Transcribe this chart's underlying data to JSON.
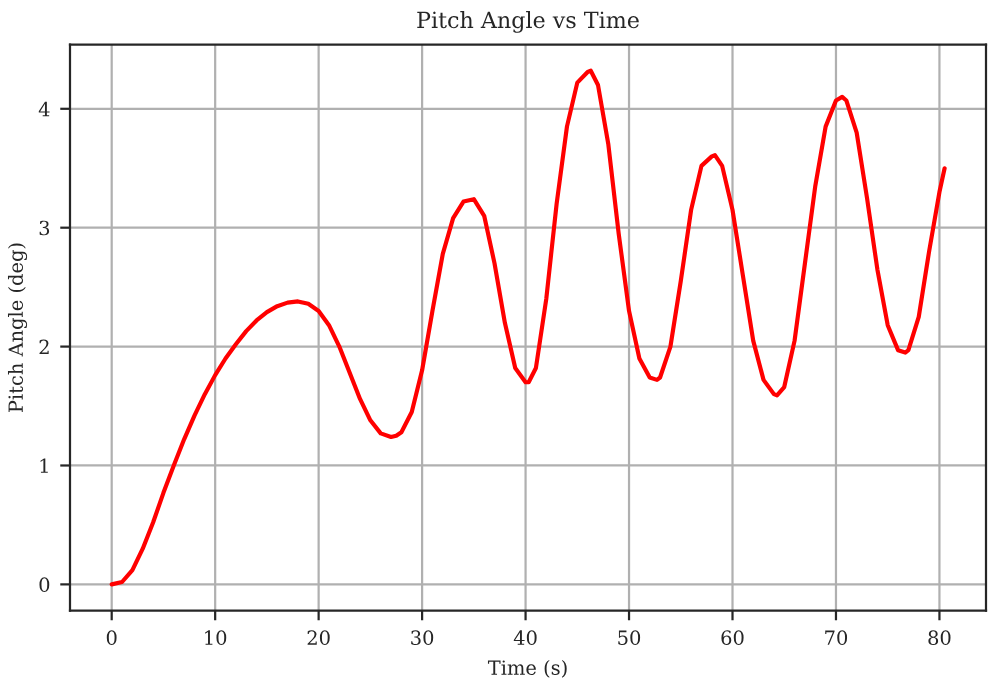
{
  "chart_data": {
    "type": "line",
    "title": "Pitch Angle vs Time",
    "xlabel": "Time (s)",
    "ylabel": "Pitch Angle (deg)",
    "x": [
      0,
      1,
      2,
      3,
      4,
      5,
      6,
      7,
      8,
      9,
      10,
      11,
      12,
      13,
      14,
      15,
      16,
      17,
      18,
      19,
      20,
      21,
      22,
      23,
      24,
      25,
      26,
      27,
      27.5,
      28,
      29,
      30,
      31,
      32,
      33,
      34,
      35,
      36,
      37,
      38,
      39,
      40,
      40.3,
      41,
      42,
      43,
      44,
      45,
      46,
      46.3,
      47,
      48,
      49,
      50,
      51,
      52,
      52.7,
      53,
      54,
      55,
      56,
      57,
      58,
      58.3,
      59,
      60,
      61,
      62,
      63,
      64,
      64.3,
      65,
      66,
      67,
      68,
      69,
      70,
      70.6,
      71,
      72,
      73,
      74,
      75,
      76,
      76.7,
      77,
      78,
      79,
      80,
      80.5
    ],
    "series": [
      {
        "color": "#ff0000",
        "values": [
          0,
          0.02,
          0.12,
          0.3,
          0.52,
          0.77,
          1.0,
          1.22,
          1.42,
          1.6,
          1.76,
          1.9,
          2.02,
          2.13,
          2.22,
          2.29,
          2.34,
          2.37,
          2.38,
          2.36,
          2.3,
          2.18,
          2.0,
          1.78,
          1.56,
          1.38,
          1.27,
          1.24,
          1.25,
          1.28,
          1.45,
          1.8,
          2.3,
          2.78,
          3.08,
          3.22,
          3.24,
          3.1,
          2.7,
          2.2,
          1.82,
          1.7,
          1.7,
          1.82,
          2.4,
          3.2,
          3.85,
          4.22,
          4.31,
          4.32,
          4.2,
          3.7,
          2.95,
          2.3,
          1.9,
          1.74,
          1.72,
          1.74,
          2.0,
          2.55,
          3.15,
          3.52,
          3.6,
          3.61,
          3.52,
          3.15,
          2.6,
          2.05,
          1.72,
          1.6,
          1.59,
          1.66,
          2.05,
          2.7,
          3.35,
          3.85,
          4.07,
          4.1,
          4.07,
          3.8,
          3.25,
          2.65,
          2.18,
          1.97,
          1.95,
          1.97,
          2.25,
          2.8,
          3.3,
          3.5
        ]
      }
    ],
    "xlim": [
      -4.03,
      84.5
    ],
    "ylim": [
      -0.22,
      4.54
    ],
    "xticks": [
      0,
      10,
      20,
      30,
      40,
      50,
      60,
      70,
      80
    ],
    "yticks": [
      0,
      1,
      2,
      3,
      4
    ],
    "grid": true,
    "legend": false,
    "marker": "none",
    "line_style": "solid"
  }
}
